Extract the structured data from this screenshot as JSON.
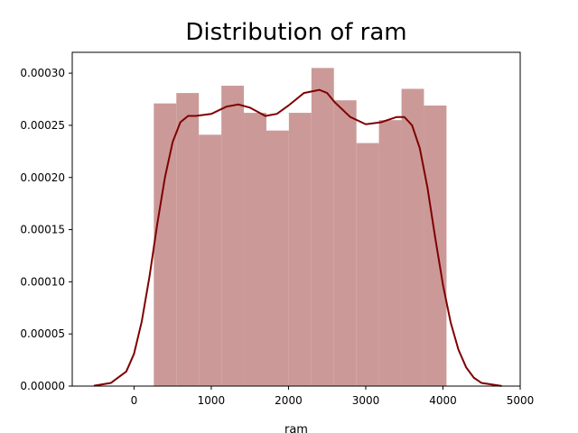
{
  "chart_data": {
    "type": "bar",
    "title": "Distribution of ram",
    "xlabel": "ram",
    "ylabel": "",
    "xlim": [
      -800,
      5000
    ],
    "ylim": [
      0,
      0.00032
    ],
    "xticks": [
      0,
      1000,
      2000,
      3000,
      4000,
      5000
    ],
    "xtick_labels": [
      "0",
      "1000",
      "2000",
      "3000",
      "4000",
      "5000"
    ],
    "yticks": [
      0,
      5e-05,
      0.0001,
      0.00015,
      0.0002,
      0.00025,
      0.0003
    ],
    "ytick_labels": [
      "0.00000",
      "0.00005",
      "0.00010",
      "0.00015",
      "0.00020",
      "0.00025",
      "0.00030"
    ],
    "grid": false,
    "bins": [
      {
        "x0": 256,
        "x1": 548,
        "density": 0.000271
      },
      {
        "x0": 548,
        "x1": 839,
        "density": 0.000281
      },
      {
        "x0": 839,
        "x1": 1131,
        "density": 0.000241
      },
      {
        "x0": 1131,
        "x1": 1422,
        "density": 0.000288
      },
      {
        "x0": 1422,
        "x1": 1714,
        "density": 0.000262
      },
      {
        "x0": 1714,
        "x1": 2005,
        "density": 0.000245
      },
      {
        "x0": 2005,
        "x1": 2297,
        "density": 0.000262
      },
      {
        "x0": 2297,
        "x1": 2588,
        "density": 0.000305
      },
      {
        "x0": 2588,
        "x1": 2880,
        "density": 0.000274
      },
      {
        "x0": 2880,
        "x1": 3171,
        "density": 0.000233
      },
      {
        "x0": 3171,
        "x1": 3463,
        "density": 0.000255
      },
      {
        "x0": 3463,
        "x1": 3754,
        "density": 0.000285
      },
      {
        "x0": 3754,
        "x1": 4046,
        "density": 0.000269
      }
    ],
    "kde": {
      "x": [
        -520,
        -300,
        -100,
        0,
        100,
        200,
        300,
        400,
        500,
        600,
        700,
        800,
        1000,
        1200,
        1350,
        1500,
        1700,
        1850,
        2000,
        2200,
        2400,
        2500,
        2600,
        2800,
        3000,
        3200,
        3400,
        3500,
        3600,
        3700,
        3800,
        3900,
        4000,
        4100,
        4200,
        4300,
        4400,
        4500,
        4760
      ],
      "y": [
        3e-07,
        3e-06,
        1.4e-05,
        3.1e-05,
        6.2e-05,
        0.000105,
        0.000155,
        0.0002,
        0.000234,
        0.000253,
        0.000259,
        0.000259,
        0.000261,
        0.000268,
        0.00027,
        0.000267,
        0.000259,
        0.000261,
        0.000269,
        0.000281,
        0.000284,
        0.000281,
        0.000272,
        0.000258,
        0.000251,
        0.000253,
        0.000258,
        0.000258,
        0.00025,
        0.000228,
        0.00019,
        0.000142,
        9.7e-05,
        6.1e-05,
        3.5e-05,
        1.8e-05,
        8e-06,
        3e-06,
        1e-07
      ]
    },
    "colors": {
      "bar_fill": "#cb9a98",
      "kde_line": "#7f0000",
      "axis": "#000000"
    }
  }
}
